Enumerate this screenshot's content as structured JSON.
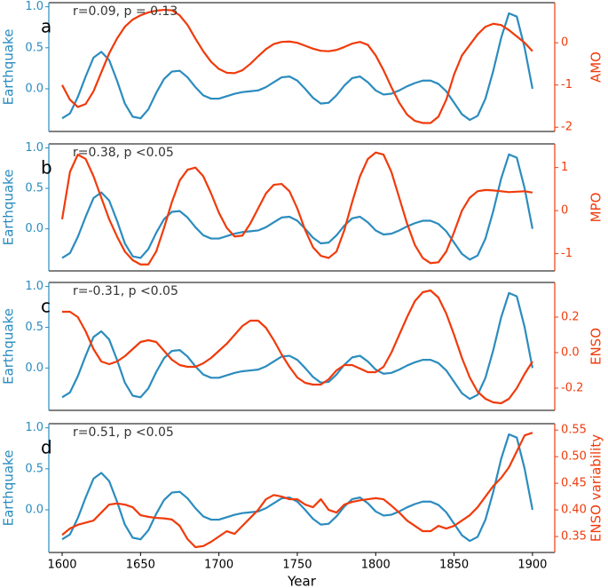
{
  "chart_data": [
    {
      "type": "line",
      "panel": "a",
      "annotation": "r=0.09, p = 0.13",
      "x": [
        1600,
        1605,
        1610,
        1615,
        1620,
        1625,
        1630,
        1635,
        1640,
        1645,
        1650,
        1655,
        1660,
        1665,
        1670,
        1675,
        1680,
        1685,
        1690,
        1695,
        1700,
        1705,
        1710,
        1715,
        1720,
        1725,
        1730,
        1735,
        1740,
        1745,
        1750,
        1755,
        1760,
        1765,
        1770,
        1775,
        1780,
        1785,
        1790,
        1795,
        1800,
        1805,
        1810,
        1815,
        1820,
        1825,
        1830,
        1835,
        1840,
        1845,
        1850,
        1855,
        1860,
        1865,
        1870,
        1875,
        1880,
        1885,
        1890,
        1895,
        1900
      ],
      "xlim": [
        1591.5,
        1914.2
      ],
      "ylim": [
        -0.52,
        1.05
      ],
      "yticks": [
        {
          "value": 0,
          "label": "0.0"
        },
        {
          "value": 0.5,
          "label": "0.5"
        },
        {
          "value": 1,
          "label": "1.0"
        }
      ],
      "y2lim": [
        -2.1,
        0.95
      ],
      "y2ticks": [
        -2,
        -1,
        0
      ],
      "series": [
        {
          "name": "Earthquake",
          "color": "#2b8cbe",
          "values": [
            -0.36,
            -0.3,
            -0.1,
            0.15,
            0.38,
            0.45,
            0.35,
            0.1,
            -0.18,
            -0.34,
            -0.36,
            -0.25,
            -0.05,
            0.12,
            0.21,
            0.22,
            0.14,
            0.02,
            -0.08,
            -0.12,
            -0.12,
            -0.09,
            -0.06,
            -0.04,
            -0.03,
            -0.02,
            0.02,
            0.08,
            0.14,
            0.15,
            0.1,
            0,
            -0.11,
            -0.18,
            -0.17,
            -0.08,
            0.04,
            0.13,
            0.15,
            0.08,
            -0.02,
            -0.07,
            -0.06,
            -0.02,
            0.03,
            0.07,
            0.1,
            0.1,
            0.06,
            -0.03,
            -0.17,
            -0.31,
            -0.38,
            -0.33,
            -0.12,
            0.22,
            0.62,
            0.92,
            0.88,
            0.5,
            0
          ]
        },
        {
          "name": "AMO",
          "color": "#f03b0b",
          "axis": "y2",
          "values": [
            -1,
            -1.35,
            -1.52,
            -1.45,
            -1.15,
            -0.7,
            -0.25,
            0.1,
            0.38,
            0.55,
            0.65,
            0.72,
            0.76,
            0.78,
            0.77,
            0.65,
            0.42,
            0.1,
            -0.2,
            -0.45,
            -0.62,
            -0.71,
            -0.72,
            -0.65,
            -0.5,
            -0.32,
            -0.15,
            -0.03,
            0.02,
            0.03,
            0,
            -0.07,
            -0.14,
            -0.19,
            -0.2,
            -0.17,
            -0.1,
            -0.02,
            0.02,
            -0.05,
            -0.3,
            -0.65,
            -1.05,
            -1.42,
            -1.7,
            -1.85,
            -1.9,
            -1.9,
            -1.75,
            -1.35,
            -0.75,
            -0.3,
            -0.05,
            0.2,
            0.38,
            0.45,
            0.42,
            0.3,
            0.15,
            0,
            -0.2
          ]
        }
      ]
    },
    {
      "type": "line",
      "panel": "b",
      "annotation": "r=0.38, p <0.05",
      "x": [
        1600,
        1605,
        1610,
        1615,
        1620,
        1625,
        1630,
        1635,
        1640,
        1645,
        1650,
        1655,
        1660,
        1665,
        1670,
        1675,
        1680,
        1685,
        1690,
        1695,
        1700,
        1705,
        1710,
        1715,
        1720,
        1725,
        1730,
        1735,
        1740,
        1745,
        1750,
        1755,
        1760,
        1765,
        1770,
        1775,
        1780,
        1785,
        1790,
        1795,
        1800,
        1805,
        1810,
        1815,
        1820,
        1825,
        1830,
        1835,
        1840,
        1845,
        1850,
        1855,
        1860,
        1865,
        1870,
        1875,
        1880,
        1885,
        1890,
        1895,
        1900
      ],
      "xlim": [
        1591.5,
        1914.2
      ],
      "ylim": [
        -0.52,
        1.05
      ],
      "yticks": [
        {
          "value": 0,
          "label": "0.0"
        },
        {
          "value": 0.5,
          "label": "0.5"
        },
        {
          "value": 1,
          "label": "1.0"
        }
      ],
      "y2lim": [
        -1.4,
        1.55
      ],
      "y2ticks": [
        -1,
        0,
        1
      ],
      "series": [
        {
          "name": "Earthquake",
          "color": "#2b8cbe",
          "values": [
            -0.36,
            -0.3,
            -0.1,
            0.15,
            0.38,
            0.45,
            0.35,
            0.1,
            -0.18,
            -0.34,
            -0.36,
            -0.25,
            -0.05,
            0.12,
            0.21,
            0.22,
            0.14,
            0.02,
            -0.08,
            -0.12,
            -0.12,
            -0.09,
            -0.06,
            -0.04,
            -0.03,
            -0.02,
            0.02,
            0.08,
            0.14,
            0.15,
            0.1,
            0,
            -0.11,
            -0.18,
            -0.17,
            -0.08,
            0.04,
            0.13,
            0.15,
            0.08,
            -0.02,
            -0.07,
            -0.06,
            -0.02,
            0.03,
            0.07,
            0.1,
            0.1,
            0.06,
            -0.03,
            -0.17,
            -0.31,
            -0.38,
            -0.33,
            -0.12,
            0.22,
            0.62,
            0.92,
            0.88,
            0.5,
            0
          ]
        },
        {
          "name": "MPO",
          "color": "#f03b0b",
          "axis": "y2",
          "values": [
            -0.2,
            0.9,
            1.3,
            1.2,
            0.8,
            0.3,
            -0.2,
            -0.6,
            -0.95,
            -1.15,
            -1.25,
            -1.25,
            -0.95,
            -0.4,
            0.2,
            0.7,
            0.95,
            1,
            0.8,
            0.4,
            -0.05,
            -0.4,
            -0.6,
            -0.58,
            -0.3,
            0.05,
            0.4,
            0.6,
            0.62,
            0.45,
            0.05,
            -0.45,
            -0.85,
            -1.05,
            -1.1,
            -0.95,
            -0.45,
            0.2,
            0.8,
            1.2,
            1.35,
            1.3,
            0.9,
            0.3,
            -0.3,
            -0.8,
            -1.1,
            -1.22,
            -1.2,
            -0.95,
            -0.5,
            0,
            0.3,
            0.45,
            0.48,
            0.47,
            0.45,
            0.43,
            0.44,
            0.45,
            0.42
          ]
        }
      ]
    },
    {
      "type": "line",
      "panel": "c",
      "annotation": "r=-0.31, p <0.05",
      "x": [
        1600,
        1605,
        1610,
        1615,
        1620,
        1625,
        1630,
        1635,
        1640,
        1645,
        1650,
        1655,
        1660,
        1665,
        1670,
        1675,
        1680,
        1685,
        1690,
        1695,
        1700,
        1705,
        1710,
        1715,
        1720,
        1725,
        1730,
        1735,
        1740,
        1745,
        1750,
        1755,
        1760,
        1765,
        1770,
        1775,
        1780,
        1785,
        1790,
        1795,
        1800,
        1805,
        1810,
        1815,
        1820,
        1825,
        1830,
        1835,
        1840,
        1845,
        1850,
        1855,
        1860,
        1865,
        1870,
        1875,
        1880,
        1885,
        1890,
        1895,
        1900
      ],
      "xlim": [
        1591.5,
        1914.2
      ],
      "ylim": [
        -0.52,
        1.05
      ],
      "yticks": [
        {
          "value": 0,
          "label": "0.0"
        },
        {
          "value": 0.5,
          "label": "0.5"
        },
        {
          "value": 1,
          "label": "1.0"
        }
      ],
      "y2lim": [
        -0.325,
        0.395
      ],
      "y2ticks": [
        -0.2,
        {
          "value": 0,
          "label": "0.0"
        },
        0.2
      ],
      "series": [
        {
          "name": "Earthquake",
          "color": "#2b8cbe",
          "values": [
            -0.36,
            -0.3,
            -0.1,
            0.15,
            0.38,
            0.45,
            0.35,
            0.1,
            -0.18,
            -0.34,
            -0.36,
            -0.25,
            -0.05,
            0.12,
            0.21,
            0.22,
            0.14,
            0.02,
            -0.08,
            -0.12,
            -0.12,
            -0.09,
            -0.06,
            -0.04,
            -0.03,
            -0.02,
            0.02,
            0.08,
            0.14,
            0.15,
            0.1,
            0,
            -0.11,
            -0.18,
            -0.17,
            -0.08,
            0.04,
            0.13,
            0.15,
            0.08,
            -0.02,
            -0.07,
            -0.06,
            -0.02,
            0.03,
            0.07,
            0.1,
            0.1,
            0.06,
            -0.03,
            -0.17,
            -0.31,
            -0.38,
            -0.33,
            -0.12,
            0.22,
            0.62,
            0.92,
            0.88,
            0.5,
            0
          ]
        },
        {
          "name": "ENSO",
          "color": "#f03b0b",
          "axis": "y2",
          "values": [
            0.23,
            0.23,
            0.2,
            0.12,
            0.02,
            -0.05,
            -0.065,
            -0.05,
            -0.02,
            0.02,
            0.06,
            0.07,
            0.06,
            0.01,
            -0.04,
            -0.07,
            -0.08,
            -0.08,
            -0.06,
            -0.03,
            0.01,
            0.05,
            0.1,
            0.15,
            0.18,
            0.18,
            0.14,
            0.07,
            -0.01,
            -0.08,
            -0.14,
            -0.17,
            -0.18,
            -0.18,
            -0.15,
            -0.1,
            -0.07,
            -0.07,
            -0.09,
            -0.11,
            -0.11,
            -0.08,
            0,
            0.1,
            0.2,
            0.29,
            0.34,
            0.35,
            0.31,
            0.22,
            0.1,
            -0.03,
            -0.14,
            -0.22,
            -0.26,
            -0.28,
            -0.285,
            -0.26,
            -0.2,
            -0.12,
            -0.05
          ]
        }
      ]
    },
    {
      "type": "line",
      "panel": "d",
      "annotation": "r=0.51, p <0.05",
      "xlabel": "Year",
      "x": [
        1600,
        1605,
        1610,
        1615,
        1620,
        1625,
        1630,
        1635,
        1640,
        1645,
        1650,
        1655,
        1660,
        1665,
        1670,
        1675,
        1680,
        1685,
        1690,
        1695,
        1700,
        1705,
        1710,
        1715,
        1720,
        1725,
        1730,
        1735,
        1740,
        1745,
        1750,
        1755,
        1760,
        1765,
        1770,
        1775,
        1780,
        1785,
        1790,
        1795,
        1800,
        1805,
        1810,
        1815,
        1820,
        1825,
        1830,
        1835,
        1840,
        1845,
        1850,
        1855,
        1860,
        1865,
        1870,
        1875,
        1880,
        1885,
        1890,
        1895,
        1900
      ],
      "xlim": [
        1591.5,
        1914.2
      ],
      "xticks": [
        1600,
        1650,
        1700,
        1750,
        1800,
        1850,
        1900
      ],
      "ylim": [
        -0.52,
        1.05
      ],
      "yticks": [
        {
          "value": 0,
          "label": "0.0"
        },
        {
          "value": 0.5,
          "label": "0.5"
        },
        {
          "value": 1,
          "label": "1.0"
        }
      ],
      "y2lim": [
        0.32,
        0.562
      ],
      "y2ticks": [
        0.35,
        {
          "value": 0.4,
          "label": "0.40"
        },
        0.45,
        {
          "value": 0.5,
          "label": "0.50"
        },
        0.55
      ],
      "series": [
        {
          "name": "Earthquake",
          "color": "#2b8cbe",
          "values": [
            -0.36,
            -0.3,
            -0.1,
            0.15,
            0.38,
            0.45,
            0.35,
            0.1,
            -0.18,
            -0.34,
            -0.36,
            -0.25,
            -0.05,
            0.12,
            0.21,
            0.22,
            0.14,
            0.02,
            -0.08,
            -0.12,
            -0.12,
            -0.09,
            -0.06,
            -0.04,
            -0.03,
            -0.02,
            0.02,
            0.08,
            0.14,
            0.15,
            0.1,
            0,
            -0.11,
            -0.18,
            -0.17,
            -0.08,
            0.04,
            0.13,
            0.15,
            0.08,
            -0.02,
            -0.07,
            -0.06,
            -0.02,
            0.03,
            0.07,
            0.1,
            0.1,
            0.06,
            -0.03,
            -0.17,
            -0.31,
            -0.38,
            -0.33,
            -0.12,
            0.22,
            0.62,
            0.92,
            0.88,
            0.5,
            0
          ]
        },
        {
          "name": "ENSO variability",
          "color": "#f03b0b",
          "axis": "y2",
          "values": [
            0.353,
            0.365,
            0.372,
            0.376,
            0.38,
            0.395,
            0.41,
            0.412,
            0.41,
            0.405,
            0.39,
            0.387,
            0.385,
            0.384,
            0.382,
            0.37,
            0.345,
            0.33,
            0.332,
            0.34,
            0.35,
            0.36,
            0.355,
            0.37,
            0.385,
            0.4,
            0.42,
            0.428,
            0.425,
            0.42,
            0.42,
            0.41,
            0.405,
            0.42,
            0.4,
            0.395,
            0.41,
            0.415,
            0.418,
            0.42,
            0.422,
            0.42,
            0.408,
            0.395,
            0.38,
            0.37,
            0.36,
            0.36,
            0.37,
            0.365,
            0.37,
            0.38,
            0.39,
            0.405,
            0.425,
            0.445,
            0.46,
            0.48,
            0.51,
            0.54,
            0.545
          ]
        }
      ]
    }
  ]
}
